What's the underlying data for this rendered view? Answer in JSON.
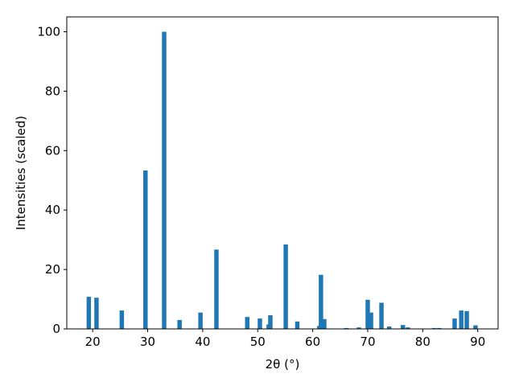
{
  "chart_data": {
    "type": "bar",
    "xlabel": "2θ (°)",
    "ylabel": "Intensities (scaled)",
    "color": "#1f77b4",
    "bar_width": 0.8,
    "x": [
      19.3,
      20.7,
      25.3,
      29.6,
      33.0,
      35.8,
      39.6,
      42.5,
      48.1,
      50.4,
      52.0,
      52.3,
      55.1,
      57.2,
      61.2,
      61.5,
      62.1,
      66.1,
      68.4,
      70.0,
      70.6,
      72.5,
      73.9,
      76.4,
      77.3,
      82.1,
      83.0,
      85.8,
      87.0,
      88.0,
      89.6
    ],
    "values": [
      10.8,
      10.5,
      6.2,
      53.3,
      100,
      3,
      5.5,
      26.7,
      4,
      3.5,
      1.5,
      4.6,
      28.4,
      2.5,
      1,
      18.2,
      3.3,
      0.3,
      0.5,
      9.8,
      5.5,
      8.8,
      0.8,
      1.3,
      0.5,
      0.3,
      0.3,
      3.5,
      6.2,
      6,
      1.2
    ],
    "xlim": [
      15.3,
      93.7
    ],
    "ylim": [
      0,
      105
    ],
    "xticks": [
      20,
      30,
      40,
      50,
      60,
      70,
      80,
      90
    ],
    "yticks": [
      0,
      20,
      40,
      60,
      80,
      100
    ],
    "grid": false
  }
}
